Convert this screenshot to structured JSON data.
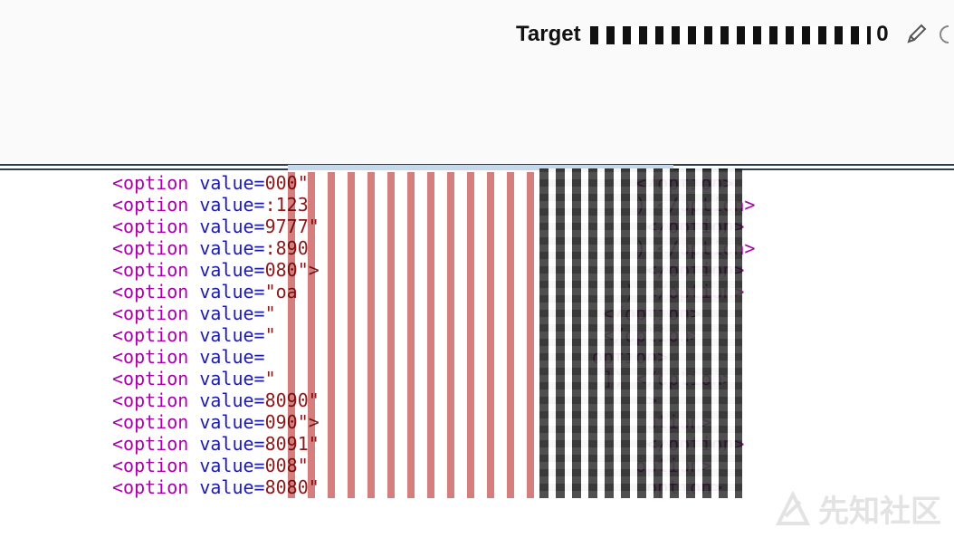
{
  "header": {
    "target_label": "Target",
    "target_value": "0",
    "edit_icon": "pencil-icon",
    "extra_icon": "circle-icon"
  },
  "code": {
    "lines": [
      {
        "open": "<option",
        "attr": "value=",
        "val": "000\"",
        "tail": "</option>"
      },
      {
        "open": "<option",
        "attr": "value=",
        "val": ":123",
        "tail": ") </option>"
      },
      {
        "open": "<option",
        "attr": "value=",
        "val": "9777\"",
        "tail": "</option>"
      },
      {
        "open": "<option",
        "attr": "value=",
        "val": ":890",
        "tail": ") </option>"
      },
      {
        "open": "<option",
        "attr": "value=",
        "val": "080\">",
        "tail": "</option>"
      },
      {
        "open": "<option",
        "attr": "value=",
        "val": "\"oa",
        "tail": ") </option>"
      },
      {
        "open": "<option",
        "attr": "value=",
        "val": "\"",
        "tail": "</option>"
      },
      {
        "open": "<option",
        "attr": "value=",
        "val": "\"",
        "tail": "</option>"
      },
      {
        "open": "<option",
        "attr": "value=",
        "val": "",
        "tail": "option>"
      },
      {
        "open": "<option",
        "attr": "value=",
        "val": "\"",
        "tail": "]) </option>"
      },
      {
        "open": "<option",
        "attr": "value=",
        "val": "8090\"",
        "tail": ">"
      },
      {
        "open": "<option",
        "attr": "value=",
        "val": "090\">",
        "tail": "otion>"
      },
      {
        "open": "<option",
        "attr": "value=",
        "val": "8091\"",
        "tail": "</option>"
      },
      {
        "open": "<option",
        "attr": "value=",
        "val": "008\"",
        "tail": "option>"
      },
      {
        "open": "<option",
        "attr": "value=",
        "val": "8080\"",
        "tail": "option>"
      }
    ]
  },
  "watermark": {
    "text": "先知社区"
  },
  "colors": {
    "tag": "#aa00aa",
    "attr": "#1b1bb3",
    "value": "#8b1a1a",
    "header_border": "#2f3d52",
    "header_strip": "#c5d7ea"
  }
}
